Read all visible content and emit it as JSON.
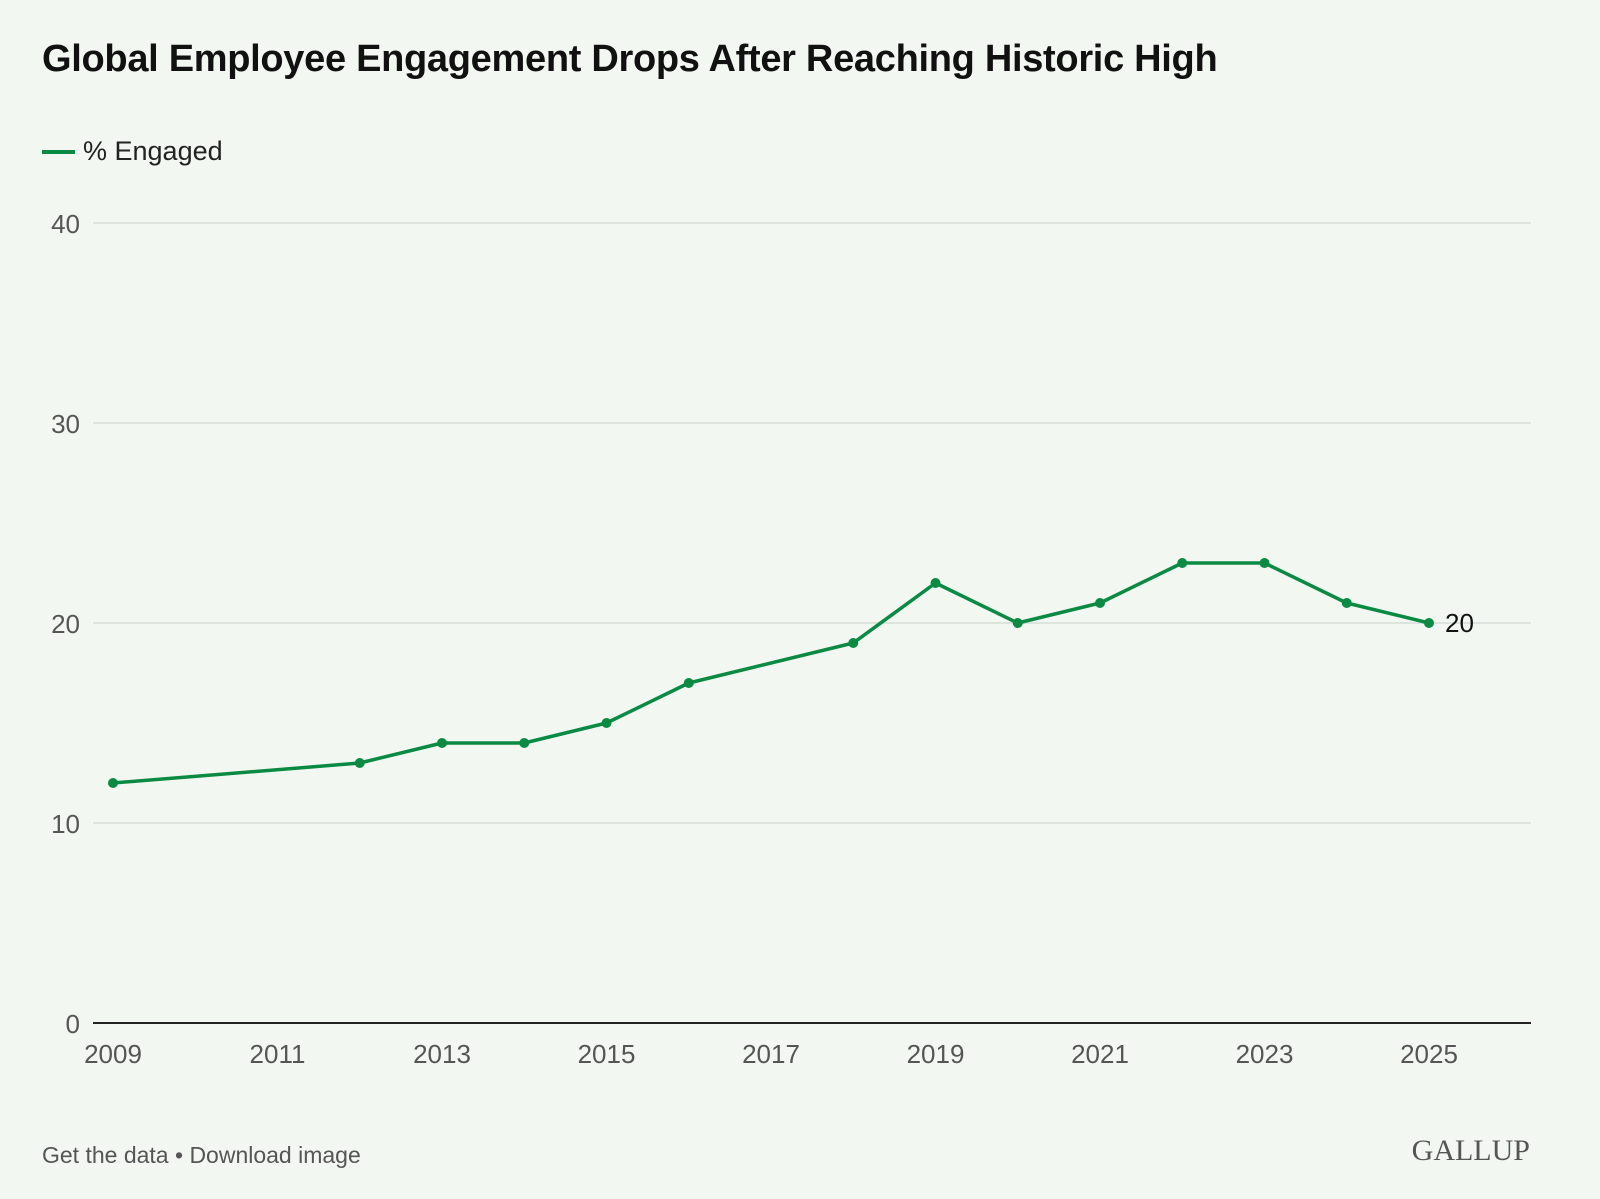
{
  "chart_data": {
    "type": "line",
    "title": "Global Employee Engagement Drops After Reaching Historic High",
    "legend": {
      "placement": "top-left",
      "entries": [
        "% Engaged"
      ]
    },
    "xlabel": "",
    "ylabel": "",
    "xlim": [
      2009,
      2026.25
    ],
    "ylim": [
      0,
      40
    ],
    "yticks": [
      0,
      10,
      20,
      30,
      40
    ],
    "xticks": [
      2009,
      2011,
      2013,
      2015,
      2017,
      2019,
      2021,
      2023,
      2025
    ],
    "grid": true,
    "series": [
      {
        "name": "% Engaged",
        "color": "#0a8a43",
        "x": [
          2009,
          2012,
          2013,
          2014,
          2015,
          2016,
          2018,
          2019,
          2020,
          2021,
          2022,
          2023,
          2024,
          2025
        ],
        "y": [
          12,
          13,
          14,
          14,
          15,
          17,
          19,
          22,
          20,
          21,
          23,
          23,
          21,
          20
        ]
      }
    ],
    "annotations": [
      {
        "x": 2025,
        "y": 20,
        "text": "20"
      }
    ]
  },
  "footer": {
    "get_data": "Get the data",
    "separator": " • ",
    "download": "Download image"
  },
  "logo": "GALLUP",
  "colors": {
    "background": "#f2f8f1",
    "line": "#0a8a43",
    "grid": "#dde3dd"
  }
}
